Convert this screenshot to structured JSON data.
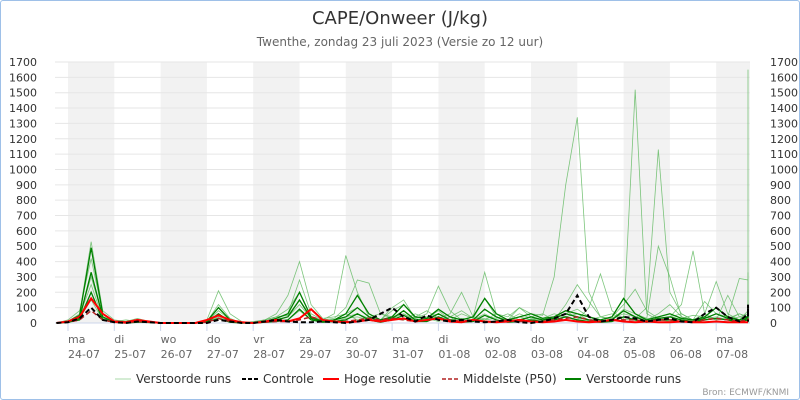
{
  "chart_data": {
    "type": "line",
    "title": "CAPE/Onweer (J/kg)",
    "subtitle": "Twenthe, zondag 23 juli 2023 (Versie zo 12 uur)",
    "source": "Bron: ECMWF/KNMI",
    "ylim": [
      0,
      1700
    ],
    "yticks": [
      0,
      100,
      200,
      300,
      400,
      500,
      600,
      700,
      800,
      900,
      1000,
      1100,
      1200,
      1300,
      1400,
      1500,
      1600,
      1700
    ],
    "grid": true,
    "legend_position": "bottom",
    "x_start": "23-07 18:00",
    "x_step_hours": 6,
    "days": [
      {
        "wd": "ma",
        "d": "24-07"
      },
      {
        "wd": "di",
        "d": "25-07"
      },
      {
        "wd": "wo",
        "d": "26-07"
      },
      {
        "wd": "do",
        "d": "27-07"
      },
      {
        "wd": "vr",
        "d": "28-07"
      },
      {
        "wd": "za",
        "d": "29-07"
      },
      {
        "wd": "zo",
        "d": "30-07"
      },
      {
        "wd": "ma",
        "d": "31-07"
      },
      {
        "wd": "di",
        "d": "01-08"
      },
      {
        "wd": "wo",
        "d": "02-08"
      },
      {
        "wd": "do",
        "d": "03-08"
      },
      {
        "wd": "vr",
        "d": "04-08"
      },
      {
        "wd": "za",
        "d": "05-08"
      },
      {
        "wd": "zo",
        "d": "06-08"
      },
      {
        "wd": "ma",
        "d": "07-08"
      }
    ],
    "legend": [
      {
        "label": "Verstoorde runs",
        "color": "#a8d8a8",
        "style": "solid"
      },
      {
        "label": "Controle",
        "color": "#000000",
        "style": "dashed"
      },
      {
        "label": "Hoge resolutie",
        "color": "#ff0000",
        "style": "solid"
      },
      {
        "label": "Middelste (P50)",
        "color": "#b22222",
        "style": "dashed"
      },
      {
        "label": "Verstoorde runs",
        "color": "#008000",
        "style": "solid"
      }
    ],
    "series": {
      "controle": [
        0,
        5,
        30,
        100,
        20,
        5,
        0,
        10,
        5,
        0,
        0,
        0,
        0,
        0,
        20,
        10,
        0,
        0,
        10,
        20,
        10,
        5,
        5,
        10,
        5,
        0,
        10,
        20,
        60,
        100,
        40,
        10,
        50,
        20,
        10,
        20,
        10,
        5,
        10,
        20,
        5,
        0,
        10,
        30,
        60,
        180,
        40,
        10,
        20,
        40,
        30,
        10,
        20,
        30,
        10,
        5,
        60,
        100,
        40,
        10,
        60,
        120,
        80,
        20,
        10
      ],
      "hoge_resolutie": [
        0,
        10,
        40,
        160,
        60,
        10,
        5,
        20,
        10,
        0,
        0,
        0,
        0,
        20,
        50,
        20,
        5,
        0,
        10,
        20,
        10,
        30,
        90,
        20,
        10,
        5,
        10,
        20,
        10,
        20,
        30,
        10,
        20,
        30,
        10,
        5,
        20,
        10,
        5,
        10,
        20,
        10,
        5,
        10,
        20,
        10,
        5,
        10,
        20,
        10,
        5,
        10,
        5,
        5,
        10,
        5,
        5,
        10,
        5,
        5,
        5,
        5,
        5,
        5,
        5
      ],
      "p50": [
        0,
        5,
        20,
        80,
        20,
        5,
        0,
        10,
        5,
        0,
        0,
        0,
        0,
        5,
        30,
        10,
        5,
        0,
        5,
        10,
        10,
        20,
        40,
        20,
        10,
        10,
        20,
        30,
        20,
        30,
        20,
        10,
        20,
        30,
        20,
        10,
        20,
        10,
        10,
        20,
        10,
        10,
        10,
        20,
        30,
        40,
        20,
        10,
        20,
        20,
        20,
        10,
        20,
        20,
        10,
        10,
        20,
        30,
        20,
        10,
        20,
        30,
        20,
        10,
        10
      ],
      "verstoorde_licht": [
        [
          0,
          10,
          60,
          530,
          80,
          20,
          10,
          30,
          10,
          0,
          0,
          0,
          0,
          20,
          210,
          60,
          10,
          0,
          20,
          60,
          180,
          400,
          120,
          30,
          40,
          60,
          20,
          40,
          60,
          40,
          20,
          60,
          30,
          10,
          40,
          80,
          30,
          20,
          60,
          40,
          100,
          60,
          50,
          300,
          900,
          1340,
          200,
          40,
          30,
          60,
          40,
          30,
          20,
          10,
          30,
          50,
          40,
          20,
          30,
          60,
          40,
          20,
          30,
          50,
          60
        ],
        [
          0,
          20,
          80,
          420,
          60,
          10,
          20,
          10,
          0,
          0,
          0,
          0,
          0,
          10,
          120,
          30,
          0,
          10,
          20,
          40,
          90,
          200,
          40,
          20,
          60,
          440,
          200,
          40,
          20,
          30,
          60,
          20,
          30,
          40,
          20,
          30,
          20,
          30,
          40,
          20,
          10,
          20,
          30,
          60,
          40,
          20,
          100,
          320,
          80,
          20,
          1520,
          60,
          20,
          40,
          60,
          20,
          30,
          40,
          20,
          40,
          30,
          60,
          40,
          20,
          30
        ],
        [
          0,
          5,
          40,
          300,
          40,
          10,
          10,
          20,
          10,
          0,
          0,
          0,
          0,
          5,
          80,
          20,
          5,
          0,
          10,
          30,
          60,
          280,
          60,
          20,
          30,
          100,
          280,
          260,
          60,
          30,
          20,
          40,
          80,
          30,
          60,
          200,
          40,
          20,
          30,
          60,
          20,
          40,
          20,
          40,
          80,
          30,
          20,
          40,
          60,
          20,
          30,
          100,
          1130,
          200,
          60,
          20,
          40,
          30,
          20,
          60,
          40,
          20,
          30,
          60,
          40
        ],
        [
          0,
          10,
          50,
          250,
          30,
          5,
          10,
          20,
          5,
          0,
          0,
          0,
          0,
          5,
          60,
          10,
          5,
          5,
          20,
          40,
          50,
          150,
          40,
          10,
          20,
          60,
          100,
          40,
          20,
          80,
          120,
          30,
          60,
          240,
          80,
          20,
          40,
          330,
          60,
          20,
          100,
          40,
          60,
          20,
          120,
          250,
          140,
          40,
          20,
          90,
          60,
          30,
          500,
          300,
          40,
          20,
          140,
          60,
          40,
          290,
          280,
          100,
          300,
          680,
          1650
        ],
        [
          0,
          10,
          40,
          200,
          30,
          10,
          5,
          10,
          5,
          0,
          0,
          0,
          0,
          10,
          40,
          10,
          5,
          0,
          10,
          20,
          40,
          120,
          30,
          10,
          20,
          40,
          60,
          30,
          20,
          100,
          150,
          30,
          40,
          60,
          20,
          60,
          30,
          160,
          40,
          20,
          60,
          30,
          20,
          40,
          60,
          90,
          40,
          20,
          40,
          120,
          220,
          80,
          30,
          40,
          120,
          470,
          60,
          20,
          180,
          40,
          60,
          220,
          80,
          330,
          60
        ],
        [
          0,
          5,
          30,
          150,
          20,
          5,
          5,
          10,
          5,
          0,
          0,
          0,
          0,
          5,
          30,
          5,
          0,
          0,
          5,
          10,
          20,
          80,
          20,
          5,
          10,
          30,
          40,
          20,
          10,
          40,
          60,
          20,
          30,
          80,
          20,
          30,
          20,
          60,
          20,
          10,
          40,
          20,
          10,
          20,
          40,
          60,
          20,
          10,
          30,
          80,
          40,
          20,
          60,
          120,
          40,
          20,
          60,
          270,
          60,
          20,
          80,
          40,
          100,
          60,
          210
        ]
      ],
      "verstoorde_donker": [
        [
          0,
          10,
          50,
          490,
          60,
          10,
          5,
          20,
          10,
          0,
          0,
          0,
          0,
          10,
          100,
          20,
          5,
          0,
          10,
          30,
          60,
          200,
          40,
          10,
          20,
          60,
          180,
          60,
          20,
          40,
          120,
          40,
          30,
          90,
          40,
          20,
          40,
          160,
          60,
          20,
          40,
          60,
          30,
          40,
          80,
          60,
          40,
          20,
          40,
          160,
          60,
          20,
          40,
          60,
          30,
          20,
          40,
          100,
          40,
          20,
          40,
          60,
          30,
          20,
          40
        ],
        [
          0,
          5,
          30,
          330,
          40,
          5,
          5,
          10,
          5,
          0,
          0,
          0,
          0,
          5,
          60,
          10,
          0,
          0,
          5,
          20,
          40,
          150,
          30,
          10,
          20,
          40,
          100,
          40,
          10,
          30,
          80,
          20,
          20,
          60,
          20,
          10,
          20,
          90,
          40,
          10,
          20,
          40,
          20,
          30,
          60,
          40,
          20,
          10,
          20,
          80,
          40,
          10,
          30,
          40,
          20,
          10,
          30,
          60,
          30,
          10,
          30,
          40,
          20,
          10,
          30
        ],
        [
          0,
          5,
          20,
          200,
          20,
          5,
          0,
          5,
          5,
          0,
          0,
          0,
          0,
          5,
          30,
          5,
          0,
          0,
          5,
          10,
          20,
          90,
          20,
          5,
          10,
          20,
          60,
          20,
          5,
          20,
          50,
          10,
          10,
          40,
          10,
          5,
          10,
          50,
          20,
          5,
          10,
          20,
          10,
          20,
          40,
          20,
          10,
          5,
          10,
          40,
          20,
          5,
          20,
          20,
          10,
          5,
          20,
          30,
          20,
          5,
          20,
          20,
          10,
          5,
          20
        ]
      ]
    }
  }
}
